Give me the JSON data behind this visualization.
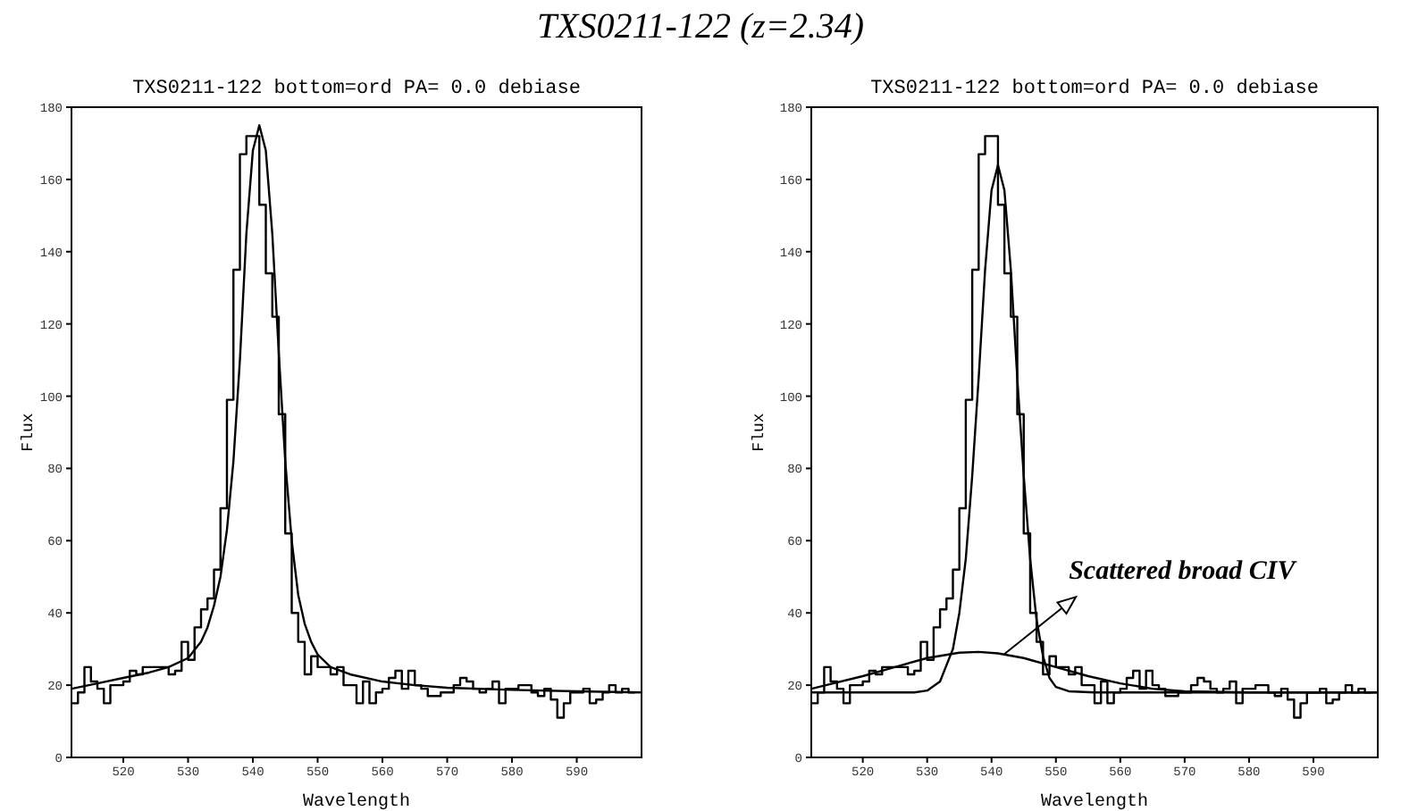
{
  "chart_data": [
    {
      "type": "line",
      "title": "TXS0211-122 (z=2.34)",
      "subtitle": "TXS0211-122 bottom=ord PA= 0.0 debiase",
      "xlabel": "Wavelength",
      "ylabel": "Flux",
      "xlim": [
        512,
        600
      ],
      "xticks": [
        520,
        530,
        540,
        550,
        560,
        570,
        580,
        590
      ],
      "ylim": [
        0,
        180
      ],
      "yticks": [
        0,
        20,
        40,
        60,
        80,
        100,
        120,
        140,
        160,
        180
      ],
      "grid": false,
      "marker": "none",
      "series": [
        {
          "type": "step",
          "color": "#000000",
          "x": [
            512,
            513,
            514,
            515,
            516,
            517,
            518,
            519,
            520,
            521,
            522,
            523,
            524,
            525,
            526,
            527,
            528,
            529,
            530,
            531,
            532,
            533,
            534,
            535,
            536,
            537,
            538,
            539,
            540,
            541,
            542,
            543,
            544,
            545,
            546,
            547,
            548,
            549,
            550,
            551,
            552,
            553,
            554,
            555,
            556,
            557,
            558,
            559,
            560,
            561,
            562,
            563,
            564,
            565,
            566,
            567,
            568,
            569,
            570,
            571,
            572,
            573,
            574,
            575,
            576,
            577,
            578,
            579,
            580,
            581,
            582,
            583,
            584,
            585,
            586,
            587,
            588,
            589,
            590,
            591,
            592,
            593,
            594,
            595,
            596,
            597,
            598,
            599
          ],
          "values": [
            15,
            18,
            25,
            21,
            19,
            15,
            20,
            20,
            21,
            24,
            23,
            25,
            25,
            25,
            25,
            23,
            24,
            32,
            27,
            36,
            41,
            44,
            52,
            69,
            99,
            135,
            167,
            172,
            172,
            153,
            134,
            122,
            95,
            62,
            40,
            32,
            23,
            28,
            25,
            25,
            23,
            25,
            20,
            20,
            15,
            21,
            15,
            18,
            19,
            22,
            24,
            19,
            24,
            20,
            19,
            17,
            17,
            18,
            18,
            20,
            22,
            21,
            19,
            18,
            19,
            21,
            15,
            19,
            19,
            20,
            20,
            18,
            17,
            19,
            16,
            11,
            15,
            18,
            18,
            19,
            15,
            16,
            18,
            20,
            18,
            19,
            18,
            18
          ]
        },
        {
          "type": "line",
          "color": "#000000",
          "x": [
            512,
            516,
            520,
            524,
            527,
            530,
            532,
            533,
            534,
            535,
            536,
            537,
            538,
            539,
            540,
            541,
            542,
            543,
            544,
            545,
            546,
            547,
            548,
            549,
            550,
            552,
            555,
            560,
            565,
            570,
            580,
            590,
            600
          ],
          "values": [
            19,
            20.5,
            22,
            23.5,
            25,
            27.5,
            32,
            36,
            42,
            50,
            63,
            82,
            110,
            145,
            168,
            175,
            168,
            145,
            112,
            82,
            60,
            45,
            37,
            32,
            28.5,
            25,
            23,
            21,
            20,
            19.3,
            18.7,
            18.3,
            18
          ]
        }
      ]
    },
    {
      "type": "line",
      "subtitle": "TXS0211-122 bottom=ord PA= 0.0 debiase",
      "xlabel": "Wavelength",
      "ylabel": "Flux",
      "xlim": [
        512,
        600
      ],
      "xticks": [
        520,
        530,
        540,
        550,
        560,
        570,
        580,
        590
      ],
      "ylim": [
        0,
        180
      ],
      "yticks": [
        0,
        20,
        40,
        60,
        80,
        100,
        120,
        140,
        160,
        180
      ],
      "grid": false,
      "marker": "none",
      "annotations": [
        {
          "text": "Scattered broad CIV",
          "x": 542,
          "y": 28.6
        }
      ],
      "series": [
        {
          "type": "step",
          "color": "#000000",
          "x": [
            512,
            513,
            514,
            515,
            516,
            517,
            518,
            519,
            520,
            521,
            522,
            523,
            524,
            525,
            526,
            527,
            528,
            529,
            530,
            531,
            532,
            533,
            534,
            535,
            536,
            537,
            538,
            539,
            540,
            541,
            542,
            543,
            544,
            545,
            546,
            547,
            548,
            549,
            550,
            551,
            552,
            553,
            554,
            555,
            556,
            557,
            558,
            559,
            560,
            561,
            562,
            563,
            564,
            565,
            566,
            567,
            568,
            569,
            570,
            571,
            572,
            573,
            574,
            575,
            576,
            577,
            578,
            579,
            580,
            581,
            582,
            583,
            584,
            585,
            586,
            587,
            588,
            589,
            590,
            591,
            592,
            593,
            594,
            595,
            596,
            597,
            598,
            599
          ],
          "values": [
            15,
            18,
            25,
            21,
            19,
            15,
            20,
            20,
            21,
            24,
            23,
            25,
            25,
            25,
            25,
            23,
            24,
            32,
            27,
            36,
            41,
            44,
            52,
            69,
            99,
            135,
            167,
            172,
            172,
            153,
            134,
            122,
            95,
            62,
            40,
            32,
            23,
            28,
            25,
            25,
            23,
            25,
            20,
            20,
            15,
            21,
            15,
            18,
            19,
            22,
            24,
            19,
            24,
            20,
            19,
            17,
            17,
            18,
            18,
            20,
            22,
            21,
            19,
            18,
            19,
            21,
            15,
            19,
            19,
            20,
            20,
            18,
            17,
            19,
            16,
            11,
            15,
            18,
            18,
            19,
            15,
            16,
            18,
            20,
            18,
            19,
            18,
            18
          ]
        },
        {
          "type": "line",
          "color": "#000000",
          "x": [
            512,
            528,
            530,
            532,
            534,
            535,
            536,
            537,
            538,
            539,
            540,
            541,
            542,
            543,
            544,
            545,
            546,
            547,
            548,
            549,
            550,
            552,
            556,
            600
          ],
          "values": [
            18,
            18,
            18.5,
            21,
            30,
            40,
            55,
            78,
            105,
            135,
            157,
            164,
            157,
            135,
            105,
            78,
            55,
            38,
            28,
            22,
            19.5,
            18.3,
            18,
            18
          ]
        },
        {
          "type": "line",
          "color": "#000000",
          "x": [
            512,
            520,
            525,
            530,
            535,
            538,
            541,
            545,
            550,
            555,
            560,
            565,
            570,
            580,
            600
          ],
          "values": [
            19,
            22.5,
            25,
            27.5,
            29,
            29.2,
            28.8,
            27.5,
            25,
            22.5,
            20.5,
            19,
            18.3,
            18,
            18
          ]
        }
      ]
    }
  ]
}
